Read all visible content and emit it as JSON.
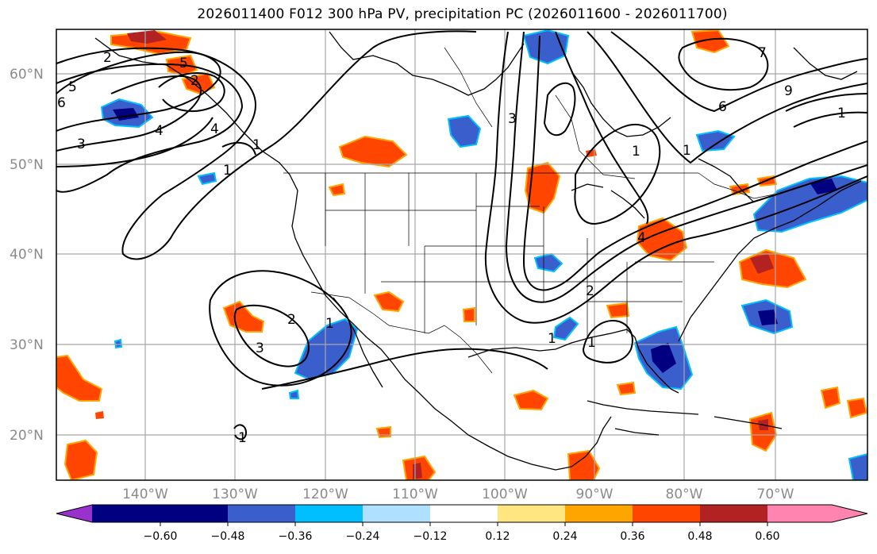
{
  "title": "2026011400 F012 300 hPa PV, precipitation PC (2026011600 - 2026011700)",
  "lat_labels": [
    "60°N",
    "50°N",
    "40°N",
    "30°N",
    "20°N"
  ],
  "lon_labels": [
    "140°W",
    "130°W",
    "120°W",
    "110°W",
    "100°W",
    "90°W",
    "80°W",
    "70°W"
  ],
  "colorbar": {
    "tick_labels": [
      "−0.60",
      "−0.48",
      "−0.36",
      "−0.24",
      "−0.12",
      "0.12",
      "0.24",
      "0.36",
      "0.48",
      "0.60"
    ],
    "colors": [
      "#9932cc",
      "#000080",
      "#3a5fcd",
      "#00bfff",
      "#b0e0ff",
      "#ffffff",
      "#ffe680",
      "#ffa500",
      "#ff4500",
      "#b22222",
      "#ff85b0"
    ]
  },
  "contour_labels": [
    "2",
    "5",
    "6",
    "4",
    "3",
    "5",
    "2",
    "4",
    "1",
    "1",
    "3",
    "2",
    "3",
    "1",
    "1",
    "4",
    "2",
    "1",
    "1",
    "1",
    "6",
    "1",
    "9",
    "7",
    "1",
    "1",
    "1"
  ],
  "legend": {
    "contours": "PV",
    "negative_colors": "blue",
    "positive_colors": "red-orange"
  }
}
